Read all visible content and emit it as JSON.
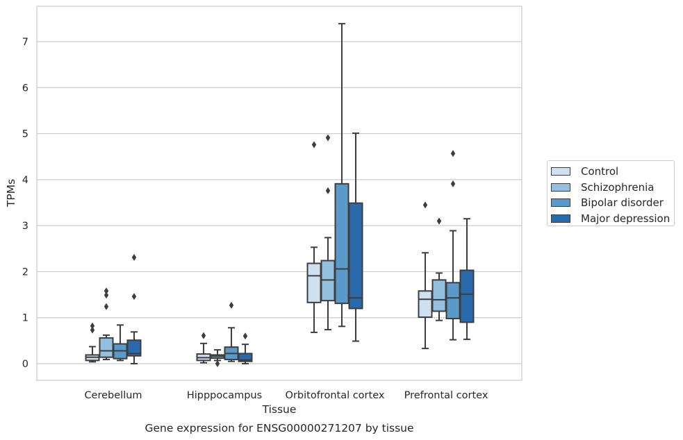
{
  "chart_data": {
    "type": "box",
    "title": "Gene expression for ENSG00000271207 by tissue",
    "xlabel": "Tissue",
    "ylabel": "TPMs",
    "ylim": [
      -0.35,
      7.75
    ],
    "yticks": [
      0,
      1,
      2,
      3,
      4,
      5,
      6,
      7
    ],
    "grid": "horizontal",
    "legend_position": "right",
    "categories": [
      "Cerebellum",
      "Hipppocampus",
      "Orbitofrontal cortex",
      "Prefrontal cortex"
    ],
    "series": [
      {
        "name": "Control",
        "color": "#cfe1f1",
        "boxes": [
          {
            "whisker_low": 0.04,
            "q1": 0.07,
            "median": 0.14,
            "q3": 0.19,
            "whisker_high": 0.37,
            "outliers": [
              0.73,
              0.82
            ]
          },
          {
            "whisker_low": 0.02,
            "q1": 0.07,
            "median": 0.13,
            "q3": 0.21,
            "whisker_high": 0.44,
            "outliers": [
              0.61
            ]
          },
          {
            "whisker_low": 0.68,
            "q1": 1.33,
            "median": 1.91,
            "q3": 2.18,
            "whisker_high": 2.53,
            "outliers": [
              4.76
            ]
          },
          {
            "whisker_low": 0.33,
            "q1": 1.01,
            "median": 1.4,
            "q3": 1.58,
            "whisker_high": 2.41,
            "outliers": [
              3.45
            ]
          }
        ]
      },
      {
        "name": "Schizophrenia",
        "color": "#94c0df",
        "boxes": [
          {
            "whisker_low": 0.09,
            "q1": 0.14,
            "median": 0.28,
            "q3": 0.56,
            "whisker_high": 0.62,
            "outliers": [
              1.24,
              1.49,
              1.58
            ]
          },
          {
            "whisker_low": 0.07,
            "q1": 0.12,
            "median": 0.16,
            "q3": 0.19,
            "whisker_high": 0.3,
            "outliers": [
              0.0
            ]
          },
          {
            "whisker_low": 0.74,
            "q1": 1.37,
            "median": 1.82,
            "q3": 2.24,
            "whisker_high": 2.74,
            "outliers": [
              3.76,
              4.91
            ]
          },
          {
            "whisker_low": 0.94,
            "q1": 1.14,
            "median": 1.39,
            "q3": 1.82,
            "whisker_high": 1.97,
            "outliers": [
              3.1
            ]
          }
        ]
      },
      {
        "name": "Bipolar disorder",
        "color": "#5a9ac9",
        "boxes": [
          {
            "whisker_low": 0.07,
            "q1": 0.11,
            "median": 0.28,
            "q3": 0.43,
            "whisker_high": 0.84,
            "outliers": []
          },
          {
            "whisker_low": 0.05,
            "q1": 0.09,
            "median": 0.22,
            "q3": 0.36,
            "whisker_high": 0.78,
            "outliers": [
              1.27
            ]
          },
          {
            "whisker_low": 0.81,
            "q1": 1.31,
            "median": 2.06,
            "q3": 3.91,
            "whisker_high": 7.39,
            "outliers": []
          },
          {
            "whisker_low": 0.52,
            "q1": 0.98,
            "median": 1.43,
            "q3": 1.76,
            "whisker_high": 2.89,
            "outliers": [
              3.91,
              4.57
            ]
          }
        ]
      },
      {
        "name": "Major depression",
        "color": "#2a6aaa",
        "boxes": [
          {
            "whisker_low": 0.0,
            "q1": 0.17,
            "median": 0.22,
            "q3": 0.51,
            "whisker_high": 0.69,
            "outliers": [
              1.46,
              2.31
            ]
          },
          {
            "whisker_low": 0.0,
            "q1": 0.05,
            "median": 0.08,
            "q3": 0.22,
            "whisker_high": 0.42,
            "outliers": [
              0.6
            ]
          },
          {
            "whisker_low": 0.49,
            "q1": 1.2,
            "median": 1.43,
            "q3": 3.49,
            "whisker_high": 5.01,
            "outliers": []
          },
          {
            "whisker_low": 0.53,
            "q1": 0.9,
            "median": 1.51,
            "q3": 2.03,
            "whisker_high": 3.15,
            "outliers": []
          }
        ]
      }
    ]
  }
}
